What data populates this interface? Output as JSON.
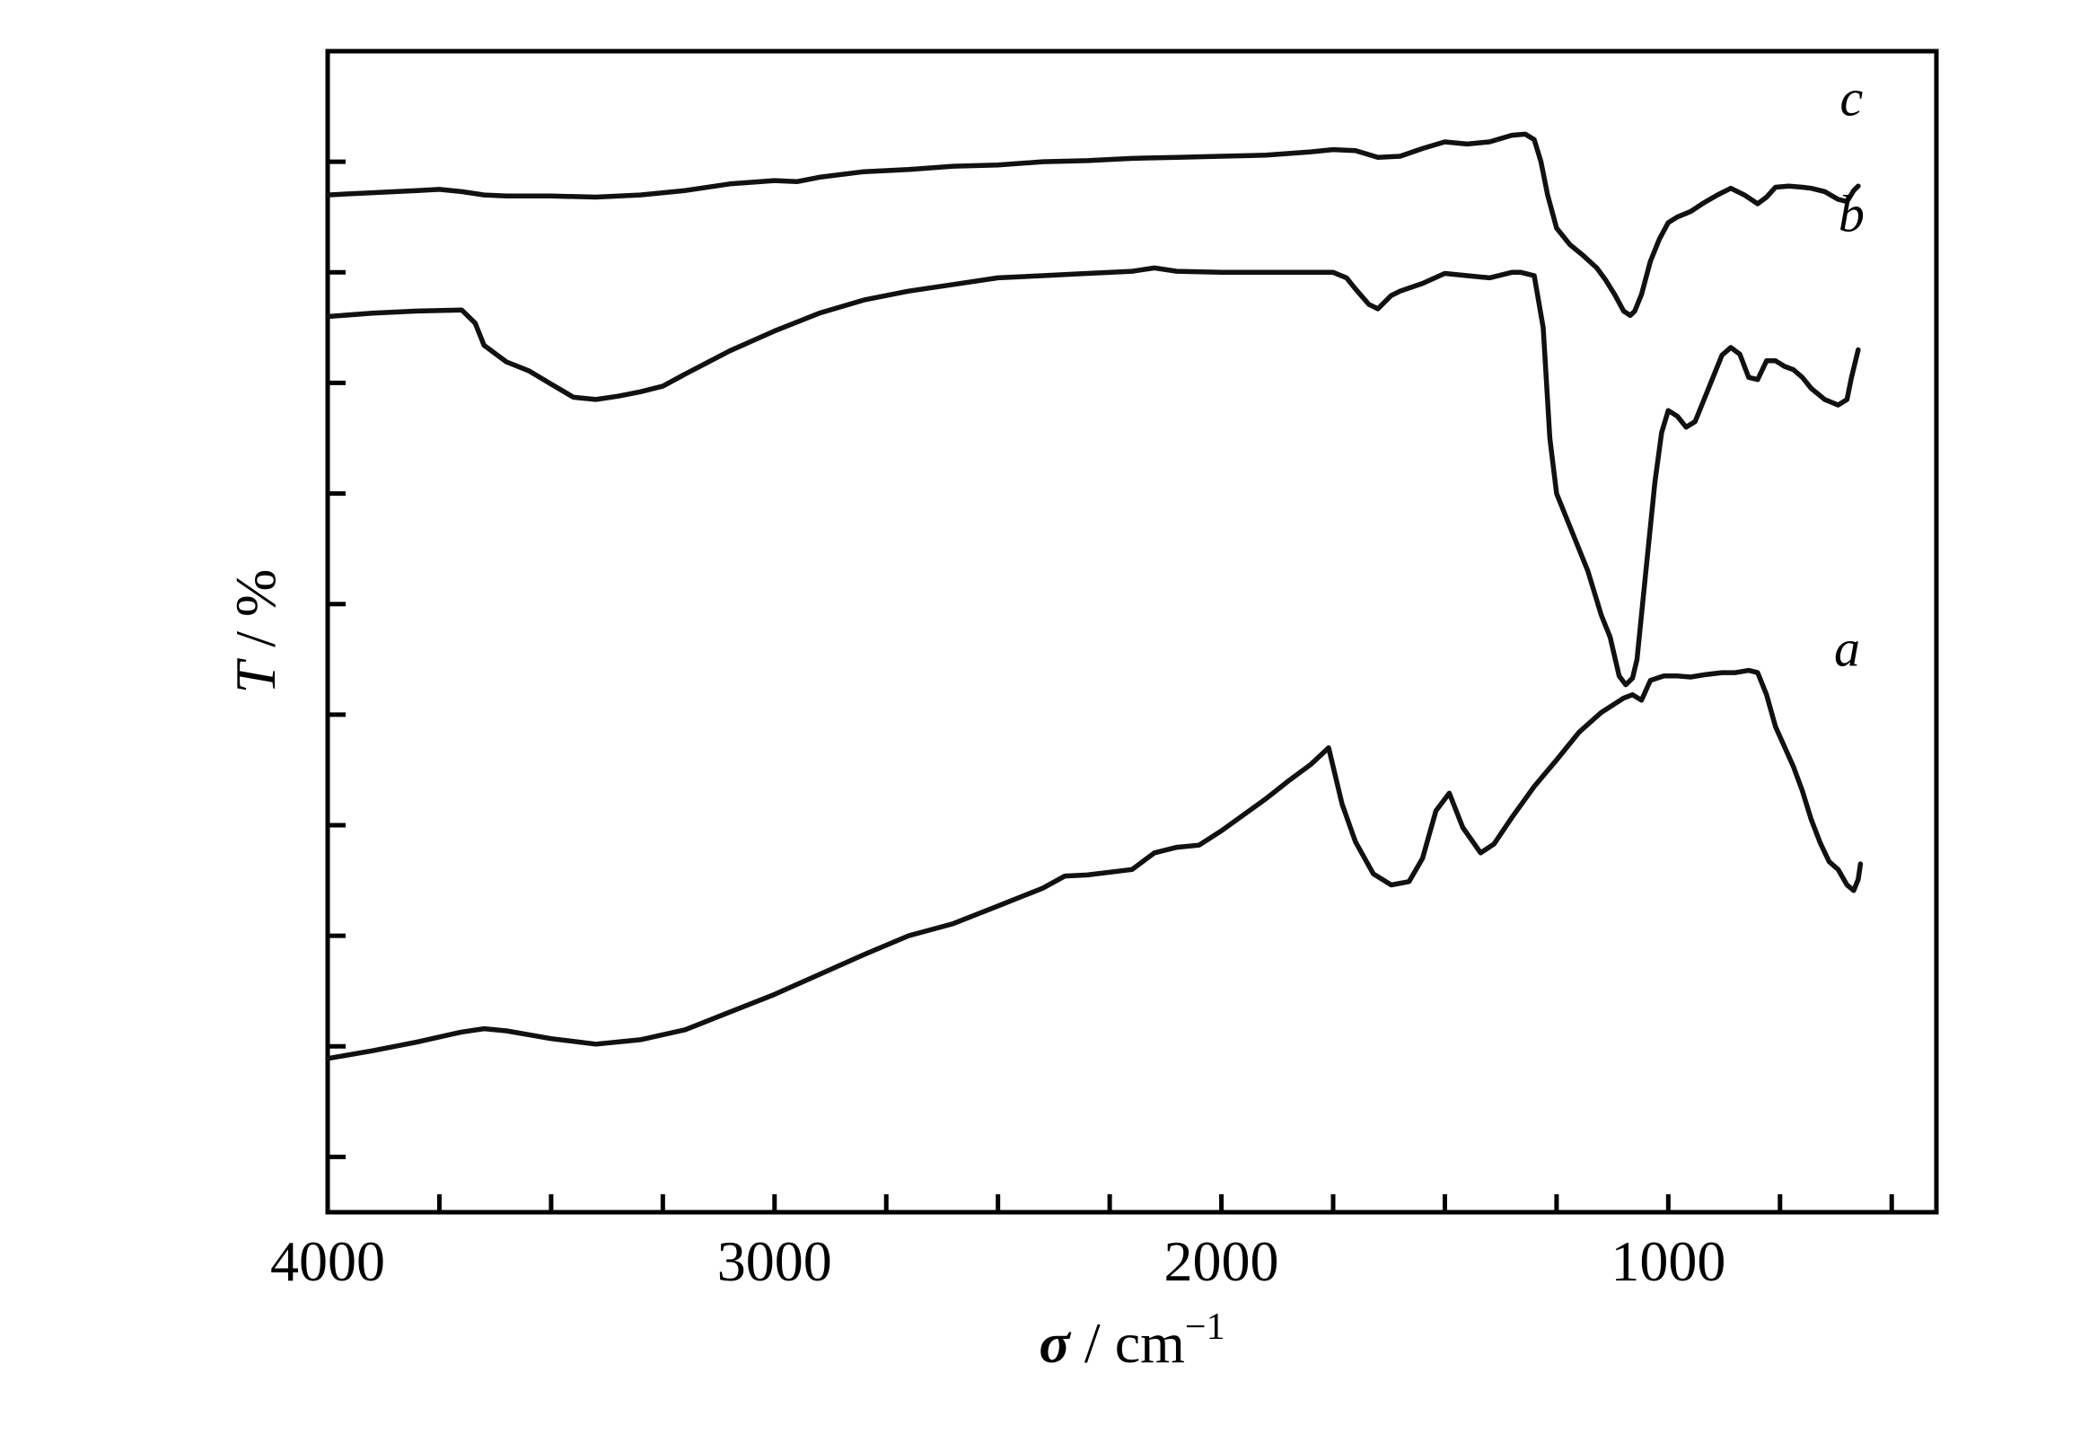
{
  "chart_data": {
    "type": "line",
    "title": "",
    "xlabel": {
      "symbol": "σ",
      "unit": " / cm",
      "exponent": "−1"
    },
    "ylabel": {
      "symbol": "T",
      "unit": " / %"
    },
    "xlim": [
      4000,
      400
    ],
    "x_reversed": true,
    "x_ticks": [
      4000,
      3000,
      2000,
      1000
    ],
    "x_minor_ticks": [
      3750,
      3500,
      3250,
      2750,
      2500,
      2250,
      1750,
      1500,
      1250,
      750,
      500
    ],
    "ylim": [
      0,
      105
    ],
    "y_ticks": [
      5,
      15,
      25,
      35,
      45,
      55,
      65,
      75,
      85,
      95
    ],
    "y_tick_labels_shown": false,
    "grid": false,
    "line_color": "#111111",
    "series": [
      {
        "name": "a",
        "points": [
          [
            4000,
            13.9
          ],
          [
            3900,
            14.6
          ],
          [
            3800,
            15.4
          ],
          [
            3700,
            16.3
          ],
          [
            3650,
            16.6
          ],
          [
            3600,
            16.4
          ],
          [
            3500,
            15.7
          ],
          [
            3400,
            15.2
          ],
          [
            3300,
            15.6
          ],
          [
            3200,
            16.5
          ],
          [
            3100,
            18.1
          ],
          [
            3000,
            19.7
          ],
          [
            2900,
            21.5
          ],
          [
            2800,
            23.3
          ],
          [
            2700,
            25.0
          ],
          [
            2600,
            26.1
          ],
          [
            2500,
            27.7
          ],
          [
            2400,
            29.3
          ],
          [
            2350,
            30.4
          ],
          [
            2300,
            30.5
          ],
          [
            2200,
            31.0
          ],
          [
            2150,
            32.5
          ],
          [
            2100,
            33.0
          ],
          [
            2050,
            33.2
          ],
          [
            2000,
            34.5
          ],
          [
            1900,
            37.4
          ],
          [
            1850,
            39.0
          ],
          [
            1800,
            40.5
          ],
          [
            1760,
            42.0
          ],
          [
            1730,
            36.9
          ],
          [
            1700,
            33.5
          ],
          [
            1660,
            30.6
          ],
          [
            1620,
            29.6
          ],
          [
            1580,
            29.9
          ],
          [
            1550,
            32.0
          ],
          [
            1520,
            36.3
          ],
          [
            1490,
            37.9
          ],
          [
            1460,
            34.8
          ],
          [
            1420,
            32.5
          ],
          [
            1390,
            33.3
          ],
          [
            1350,
            35.7
          ],
          [
            1300,
            38.5
          ],
          [
            1250,
            40.9
          ],
          [
            1200,
            43.4
          ],
          [
            1150,
            45.2
          ],
          [
            1100,
            46.5
          ],
          [
            1080,
            46.8
          ],
          [
            1060,
            46.3
          ],
          [
            1040,
            48.1
          ],
          [
            1010,
            48.5
          ],
          [
            980,
            48.5
          ],
          [
            950,
            48.4
          ],
          [
            920,
            48.6
          ],
          [
            880,
            48.8
          ],
          [
            850,
            48.8
          ],
          [
            820,
            49.0
          ],
          [
            800,
            48.8
          ],
          [
            780,
            46.8
          ],
          [
            760,
            43.9
          ],
          [
            740,
            42.1
          ],
          [
            720,
            40.3
          ],
          [
            700,
            38.1
          ],
          [
            680,
            35.5
          ],
          [
            660,
            33.4
          ],
          [
            640,
            31.7
          ],
          [
            620,
            31.0
          ],
          [
            600,
            29.6
          ],
          [
            585,
            29.1
          ],
          [
            575,
            30.1
          ],
          [
            570,
            31.5
          ]
        ]
      },
      {
        "name": "b",
        "points": [
          [
            4000,
            81.0
          ],
          [
            3900,
            81.3
          ],
          [
            3800,
            81.5
          ],
          [
            3700,
            81.6
          ],
          [
            3670,
            80.4
          ],
          [
            3650,
            78.4
          ],
          [
            3600,
            76.9
          ],
          [
            3550,
            76.1
          ],
          [
            3500,
            74.9
          ],
          [
            3450,
            73.7
          ],
          [
            3400,
            73.5
          ],
          [
            3350,
            73.8
          ],
          [
            3300,
            74.2
          ],
          [
            3250,
            74.7
          ],
          [
            3200,
            75.8
          ],
          [
            3100,
            77.9
          ],
          [
            3000,
            79.7
          ],
          [
            2900,
            81.3
          ],
          [
            2800,
            82.5
          ],
          [
            2700,
            83.3
          ],
          [
            2600,
            83.9
          ],
          [
            2500,
            84.5
          ],
          [
            2400,
            84.7
          ],
          [
            2300,
            84.9
          ],
          [
            2200,
            85.1
          ],
          [
            2150,
            85.4
          ],
          [
            2100,
            85.1
          ],
          [
            2000,
            85.0
          ],
          [
            1900,
            85.0
          ],
          [
            1800,
            85.0
          ],
          [
            1750,
            85.0
          ],
          [
            1720,
            84.5
          ],
          [
            1700,
            83.5
          ],
          [
            1670,
            82.1
          ],
          [
            1650,
            81.7
          ],
          [
            1620,
            82.9
          ],
          [
            1600,
            83.3
          ],
          [
            1550,
            84.0
          ],
          [
            1500,
            84.9
          ],
          [
            1450,
            84.7
          ],
          [
            1400,
            84.5
          ],
          [
            1350,
            85.0
          ],
          [
            1330,
            85.0
          ],
          [
            1300,
            84.7
          ],
          [
            1280,
            80.0
          ],
          [
            1265,
            70.0
          ],
          [
            1250,
            65.0
          ],
          [
            1220,
            62.0
          ],
          [
            1180,
            58.0
          ],
          [
            1150,
            54.0
          ],
          [
            1130,
            52.0
          ],
          [
            1110,
            48.5
          ],
          [
            1095,
            47.7
          ],
          [
            1080,
            48.3
          ],
          [
            1070,
            50.0
          ],
          [
            1050,
            58.0
          ],
          [
            1030,
            66.0
          ],
          [
            1015,
            70.5
          ],
          [
            1000,
            72.5
          ],
          [
            980,
            72.0
          ],
          [
            960,
            71.0
          ],
          [
            940,
            71.5
          ],
          [
            920,
            73.5
          ],
          [
            900,
            75.5
          ],
          [
            880,
            77.5
          ],
          [
            860,
            78.2
          ],
          [
            840,
            77.6
          ],
          [
            820,
            75.5
          ],
          [
            800,
            75.3
          ],
          [
            780,
            77.0
          ],
          [
            760,
            77.0
          ],
          [
            740,
            76.5
          ],
          [
            720,
            76.2
          ],
          [
            700,
            75.5
          ],
          [
            680,
            74.5
          ],
          [
            650,
            73.5
          ],
          [
            620,
            73.0
          ],
          [
            600,
            73.5
          ],
          [
            590,
            75.5
          ],
          [
            575,
            78.0
          ]
        ]
      },
      {
        "name": "c",
        "points": [
          [
            4000,
            92.0
          ],
          [
            3900,
            92.2
          ],
          [
            3800,
            92.4
          ],
          [
            3750,
            92.5
          ],
          [
            3700,
            92.3
          ],
          [
            3650,
            92.0
          ],
          [
            3600,
            91.9
          ],
          [
            3500,
            91.9
          ],
          [
            3400,
            91.8
          ],
          [
            3300,
            92.0
          ],
          [
            3200,
            92.4
          ],
          [
            3100,
            93.0
          ],
          [
            3000,
            93.3
          ],
          [
            2950,
            93.2
          ],
          [
            2900,
            93.6
          ],
          [
            2800,
            94.1
          ],
          [
            2700,
            94.3
          ],
          [
            2600,
            94.6
          ],
          [
            2500,
            94.7
          ],
          [
            2400,
            95.0
          ],
          [
            2300,
            95.1
          ],
          [
            2200,
            95.3
          ],
          [
            2100,
            95.4
          ],
          [
            2000,
            95.5
          ],
          [
            1900,
            95.6
          ],
          [
            1800,
            95.9
          ],
          [
            1750,
            96.1
          ],
          [
            1700,
            96.0
          ],
          [
            1650,
            95.4
          ],
          [
            1600,
            95.5
          ],
          [
            1550,
            96.2
          ],
          [
            1500,
            96.8
          ],
          [
            1450,
            96.6
          ],
          [
            1400,
            96.8
          ],
          [
            1350,
            97.4
          ],
          [
            1320,
            97.5
          ],
          [
            1300,
            97.0
          ],
          [
            1285,
            95.0
          ],
          [
            1270,
            92.0
          ],
          [
            1250,
            89.0
          ],
          [
            1220,
            87.5
          ],
          [
            1190,
            86.5
          ],
          [
            1160,
            85.4
          ],
          [
            1140,
            84.3
          ],
          [
            1120,
            83.0
          ],
          [
            1100,
            81.5
          ],
          [
            1085,
            81.1
          ],
          [
            1075,
            81.5
          ],
          [
            1060,
            83.0
          ],
          [
            1040,
            86.0
          ],
          [
            1020,
            88.0
          ],
          [
            1000,
            89.5
          ],
          [
            980,
            90.0
          ],
          [
            950,
            90.5
          ],
          [
            920,
            91.3
          ],
          [
            890,
            92.0
          ],
          [
            860,
            92.6
          ],
          [
            830,
            92.0
          ],
          [
            800,
            91.2
          ],
          [
            780,
            91.8
          ],
          [
            760,
            92.7
          ],
          [
            730,
            92.8
          ],
          [
            700,
            92.7
          ],
          [
            680,
            92.6
          ],
          [
            650,
            92.3
          ],
          [
            620,
            91.6
          ],
          [
            600,
            91.4
          ],
          [
            585,
            92.4
          ],
          [
            575,
            92.8
          ]
        ]
      }
    ]
  }
}
